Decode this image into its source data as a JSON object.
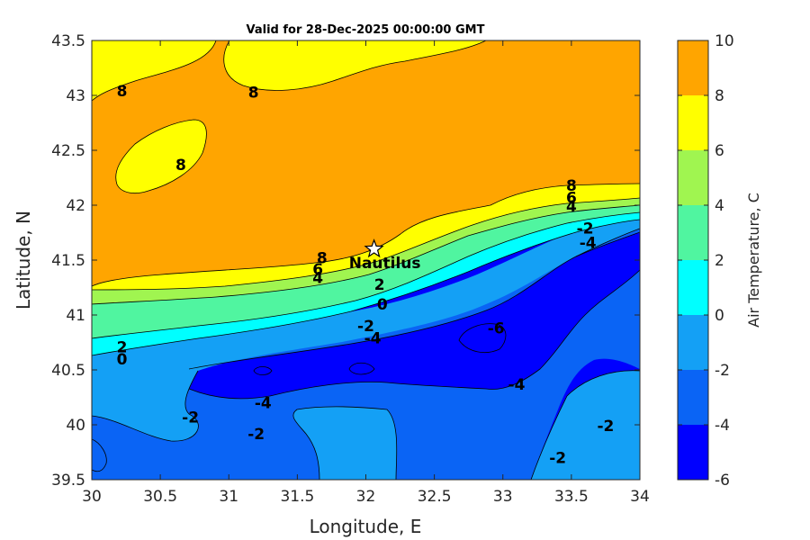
{
  "chart_data": {
    "type": "heatmap",
    "subtype": "filled-contour",
    "title": "Valid for 28-Dec-2025 00:00:00 GMT",
    "xlabel": "Longitude, E",
    "ylabel": "Latitude, N",
    "colorbar_label": "Air Temperature, C",
    "xlim": [
      30,
      34
    ],
    "ylim": [
      39.5,
      43.5
    ],
    "x_ticks": [
      "30",
      "30.5",
      "31",
      "31.5",
      "32",
      "32.5",
      "33",
      "33.5",
      "34"
    ],
    "y_ticks": [
      "39.5",
      "40",
      "40.5",
      "41",
      "41.5",
      "42",
      "42.5",
      "43",
      "43.5"
    ],
    "colorbar": {
      "levels": [
        -6,
        -4,
        -2,
        0,
        2,
        4,
        6,
        8,
        10
      ],
      "tick_labels": [
        "-6",
        "-4",
        "-2",
        "0",
        "2",
        "4",
        "6",
        "8",
        "10"
      ],
      "colors": [
        "#0000ff",
        "#0a64f5",
        "#14a0f5",
        "#00ffff",
        "#50f5a0",
        "#a0f550",
        "#ffff00",
        "#ffa500",
        "#ff5000"
      ]
    },
    "contour_labels": [
      {
        "text": "8",
        "lon": 30.22,
        "lat": 43.04
      },
      {
        "text": "8",
        "lon": 31.18,
        "lat": 43.03
      },
      {
        "text": "8",
        "lon": 30.65,
        "lat": 42.37
      },
      {
        "text": "8",
        "lon": 33.5,
        "lat": 42.18
      },
      {
        "text": "6",
        "lon": 33.5,
        "lat": 42.07
      },
      {
        "text": "4",
        "lon": 33.5,
        "lat": 41.99
      },
      {
        "text": "-2",
        "lon": 33.6,
        "lat": 41.79
      },
      {
        "text": "-4",
        "lon": 33.62,
        "lat": 41.66
      },
      {
        "text": "8",
        "lon": 31.68,
        "lat": 41.52
      },
      {
        "text": "6",
        "lon": 31.65,
        "lat": 41.42
      },
      {
        "text": "4",
        "lon": 31.65,
        "lat": 41.34
      },
      {
        "text": "2",
        "lon": 32.1,
        "lat": 41.28
      },
      {
        "text": "0",
        "lon": 32.12,
        "lat": 41.1
      },
      {
        "text": "-2",
        "lon": 32.0,
        "lat": 40.9
      },
      {
        "text": "-4",
        "lon": 32.05,
        "lat": 40.79
      },
      {
        "text": "-6",
        "lon": 32.95,
        "lat": 40.88
      },
      {
        "text": "2",
        "lon": 30.22,
        "lat": 40.71
      },
      {
        "text": "0",
        "lon": 30.22,
        "lat": 40.6
      },
      {
        "text": "-4",
        "lon": 33.1,
        "lat": 40.37
      },
      {
        "text": "-4",
        "lon": 31.25,
        "lat": 40.2
      },
      {
        "text": "-2",
        "lon": 30.72,
        "lat": 40.07
      },
      {
        "text": "-2",
        "lon": 33.75,
        "lat": 39.99
      },
      {
        "text": "-2",
        "lon": 31.2,
        "lat": 39.92
      },
      {
        "text": "-2",
        "lon": 33.4,
        "lat": 39.7
      }
    ],
    "station": {
      "name": "Nautilus",
      "lon": 32.06,
      "lat": 41.6,
      "marker": "star"
    }
  }
}
